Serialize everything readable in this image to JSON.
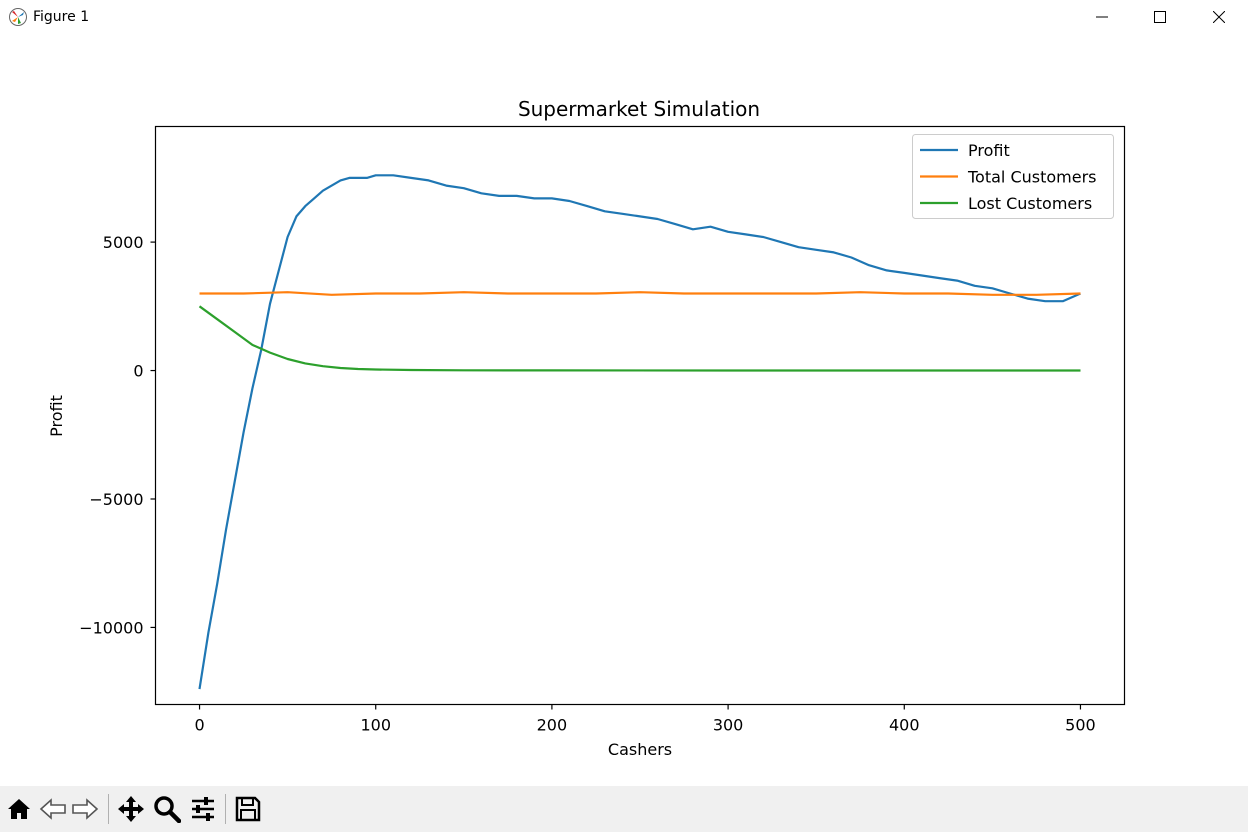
{
  "window": {
    "title": "Figure 1"
  },
  "chart_data": {
    "type": "line",
    "title": "Supermarket Simulation",
    "xlabel": "Cashers",
    "ylabel": "Profit",
    "xlim": [
      -25,
      525
    ],
    "ylim": [
      -13000,
      9500
    ],
    "xticks": [
      0,
      100,
      200,
      300,
      400,
      500
    ],
    "xtick_labels": [
      "0",
      "100",
      "200",
      "300",
      "400",
      "500"
    ],
    "yticks": [
      -10000,
      -5000,
      0,
      5000
    ],
    "ytick_labels": [
      "−10000",
      "−5000",
      "0",
      "5000"
    ],
    "legend_position": "top-right",
    "grid": false,
    "series": [
      {
        "name": "Profit",
        "color": "#1f77b4",
        "x": [
          0,
          5,
          10,
          15,
          20,
          25,
          30,
          35,
          40,
          45,
          50,
          55,
          60,
          65,
          70,
          75,
          80,
          85,
          90,
          95,
          100,
          110,
          120,
          130,
          140,
          150,
          160,
          170,
          180,
          190,
          200,
          210,
          220,
          230,
          240,
          250,
          260,
          270,
          280,
          290,
          300,
          310,
          320,
          330,
          340,
          350,
          360,
          370,
          380,
          390,
          400,
          410,
          420,
          430,
          440,
          450,
          460,
          470,
          480,
          490,
          500
        ],
        "values": [
          -12400,
          -10200,
          -8300,
          -6200,
          -4300,
          -2400,
          -700,
          800,
          2600,
          3900,
          5200,
          6000,
          6400,
          6700,
          7000,
          7200,
          7400,
          7500,
          7500,
          7500,
          7600,
          7600,
          7500,
          7400,
          7200,
          7100,
          6900,
          6800,
          6800,
          6700,
          6700,
          6600,
          6400,
          6200,
          6100,
          6000,
          5900,
          5700,
          5500,
          5600,
          5400,
          5300,
          5200,
          5000,
          4800,
          4700,
          4600,
          4400,
          4100,
          3900,
          3800,
          3700,
          3600,
          3500,
          3300,
          3200,
          3000,
          2800,
          2700,
          2700,
          3000
        ]
      },
      {
        "name": "Total Customers",
        "color": "#ff7f0e",
        "x": [
          0,
          25,
          50,
          75,
          100,
          125,
          150,
          175,
          200,
          225,
          250,
          275,
          300,
          325,
          350,
          375,
          400,
          425,
          450,
          475,
          500
        ],
        "values": [
          3000,
          3000,
          3050,
          2950,
          3000,
          3000,
          3050,
          3000,
          3000,
          3000,
          3050,
          3000,
          3000,
          3000,
          3000,
          3050,
          3000,
          3000,
          2950,
          2950,
          3000
        ]
      },
      {
        "name": "Lost Customers",
        "color": "#2ca02c",
        "x": [
          0,
          10,
          20,
          30,
          40,
          50,
          60,
          70,
          80,
          90,
          100,
          120,
          150,
          200,
          300,
          400,
          500
        ],
        "values": [
          2500,
          2000,
          1500,
          1000,
          700,
          450,
          280,
          170,
          100,
          60,
          40,
          20,
          10,
          5,
          0,
          0,
          0
        ]
      }
    ]
  }
}
